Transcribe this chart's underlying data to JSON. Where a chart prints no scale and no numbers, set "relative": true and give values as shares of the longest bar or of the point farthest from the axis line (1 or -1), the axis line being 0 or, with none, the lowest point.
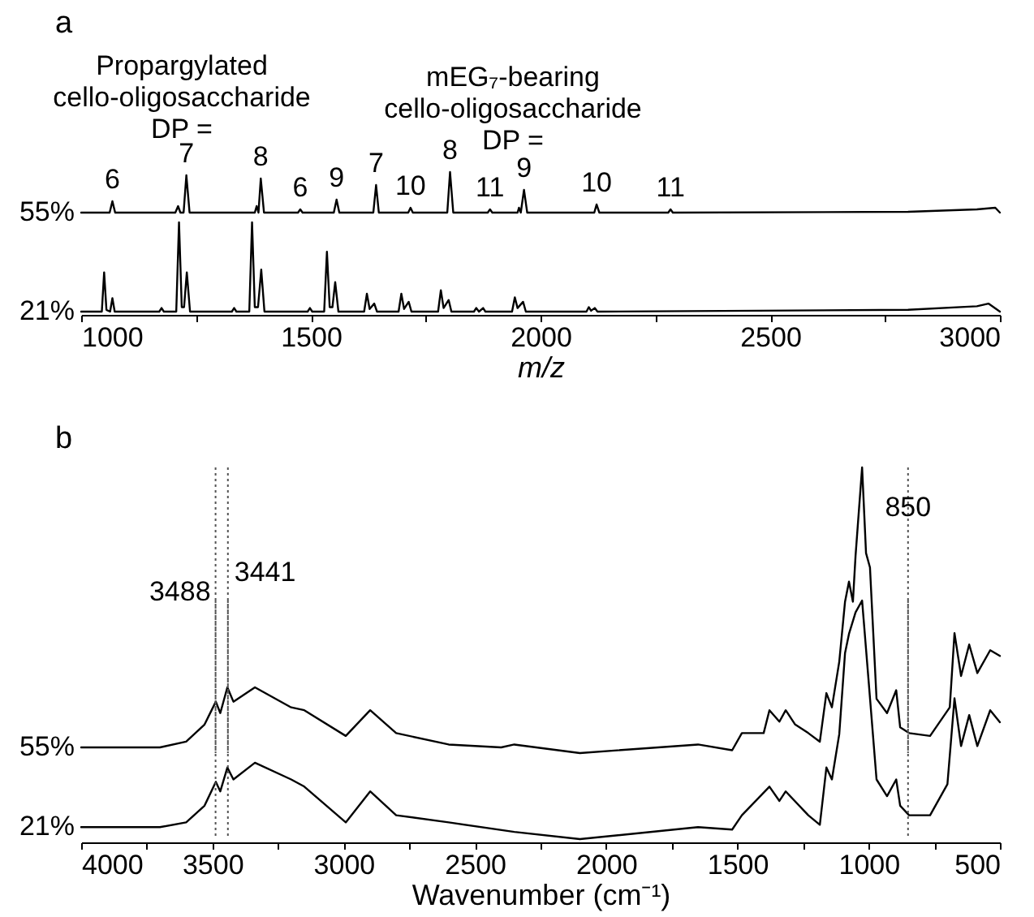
{
  "chart_data": [
    {
      "type": "line",
      "title": "a",
      "relative": true,
      "xlim": [
        1000,
        3000
      ],
      "annotations": [
        "Propargylated\ncello-oligosaccharide\nDP =",
        "mEG₇-bearing\ncello-oligosaccharide\nDP =",
        {
          "text": "6",
          "x": 1068,
          "y": 0.28
        },
        {
          "text": "7",
          "x": 1229,
          "y": 0.92
        },
        {
          "text": "8",
          "x": 1391,
          "y": 0.84
        },
        {
          "text": "6",
          "x": 1477,
          "y": 0.08
        },
        {
          "text": "9",
          "x": 1556,
          "y": 0.32
        },
        {
          "text": "7",
          "x": 1642,
          "y": 0.68
        },
        {
          "text": "10",
          "x": 1717,
          "y": 0.12
        },
        {
          "text": "8",
          "x": 1803,
          "y": 1
        },
        {
          "text": "11",
          "x": 1890,
          "y": 0.08
        },
        {
          "text": "9",
          "x": 1964,
          "y": 0.56
        },
        {
          "text": "10",
          "x": 2122,
          "y": 0.2
        },
        {
          "text": "11",
          "x": 2283,
          "y": 0.08
        }
      ],
      "x": [
        1000,
        1062,
        1068,
        1074,
        1205,
        1211,
        1216,
        1223,
        1229,
        1236,
        1378,
        1382,
        1386,
        1391,
        1398,
        1472,
        1477,
        1482,
        1550,
        1556,
        1562,
        1636,
        1642,
        1648,
        1712,
        1717,
        1722,
        1797,
        1803,
        1810,
        1885,
        1890,
        1895,
        1950,
        1953,
        1957,
        1964,
        1971,
        2117,
        2122,
        2128,
        2278,
        2283,
        2288,
        2800,
        2950,
        2990,
        3000
      ],
      "series": [
        {
          "name": "55%",
          "color": "#000000",
          "values": [
            0,
            0,
            0.28,
            0,
            0,
            0.16,
            0,
            0,
            0.92,
            0,
            0,
            0.16,
            0,
            0.84,
            0,
            0,
            0.08,
            0,
            0,
            0.32,
            0,
            0,
            0.68,
            0,
            0,
            0.12,
            0,
            0,
            1,
            0,
            0,
            0.08,
            0,
            0,
            0.12,
            0,
            0.56,
            0,
            0,
            0.2,
            0,
            0,
            0.08,
            0,
            0.02,
            0.08,
            0.12,
            0
          ]
        }
      ]
    },
    {
      "type": "line",
      "relative": true,
      "xlim": [
        1000,
        3000
      ],
      "xlabel": "m/z",
      "xticks": [
        1000,
        {
          "value": 1250,
          "label": null
        },
        1500,
        {
          "value": 1750,
          "label": null
        },
        2000,
        {
          "value": 2250,
          "label": null
        },
        2500,
        {
          "value": 2750,
          "label": null
        },
        3000
      ],
      "x": [
        1000,
        1045,
        1050,
        1055,
        1063,
        1068,
        1073,
        1170,
        1175,
        1180,
        1207,
        1213,
        1219,
        1224,
        1230,
        1237,
        1328,
        1333,
        1338,
        1366,
        1372,
        1378,
        1385,
        1392,
        1399,
        1493,
        1498,
        1503,
        1529,
        1535,
        1541,
        1547,
        1553,
        1560,
        1616,
        1622,
        1628,
        1638,
        1644,
        1691,
        1697,
        1703,
        1713,
        1719,
        1777,
        1783,
        1789,
        1800,
        1806,
        1855,
        1860,
        1866,
        1875,
        1880,
        1938,
        1944,
        1950,
        1962,
        1968,
        2100,
        2105,
        2110,
        2118,
        2124,
        2800,
        2950,
        2975,
        3000
      ],
      "series": [
        {
          "name": "21%",
          "color": "#000000",
          "values": [
            0,
            0,
            0.44,
            0.02,
            0,
            0.15,
            0,
            0,
            0.04,
            0,
            0,
            1,
            0.05,
            0.05,
            0.44,
            0,
            0,
            0.04,
            0,
            0,
            1,
            0.05,
            0.05,
            0.47,
            0,
            0,
            0.04,
            0,
            0,
            0.67,
            0.05,
            0.05,
            0.33,
            0,
            0,
            0.2,
            0.03,
            0.09,
            0,
            0,
            0.2,
            0.03,
            0.11,
            0,
            0,
            0.24,
            0.04,
            0.13,
            0,
            0,
            0.04,
            0,
            0.04,
            0,
            0,
            0.16,
            0.04,
            0.11,
            0,
            0,
            0.05,
            0.01,
            0.04,
            0,
            0.02,
            0.06,
            0.09,
            0
          ]
        }
      ]
    },
    {
      "type": "line",
      "title": "b",
      "relative": true,
      "xlim": [
        4000,
        500
      ],
      "ref_lines": [
        {
          "axis": "x",
          "value": 3488,
          "label": "3488",
          "color": "#555555",
          "line_style": "dotted"
        },
        {
          "axis": "x",
          "value": 3441,
          "label": "3441",
          "color": "#555555",
          "line_style": "dotted"
        },
        {
          "axis": "x",
          "value": 850,
          "label": "850",
          "color": "#555555",
          "line_style": "dotted"
        }
      ],
      "x": [
        4000,
        3700,
        3600,
        3530,
        3487,
        3470,
        3443,
        3420,
        3338,
        3200,
        3150,
        2992,
        2899,
        2800,
        2600,
        2400,
        2350,
        2100,
        1650,
        1520,
        1483,
        1400,
        1378,
        1340,
        1316,
        1280,
        1230,
        1186,
        1161,
        1140,
        1112,
        1090,
        1075,
        1060,
        1050,
        1025,
        1010,
        995,
        970,
        930,
        895,
        880,
        846,
        766,
        691,
        673,
        648,
        617,
        586,
        537,
        500
      ],
      "series": [
        {
          "name": "55%",
          "color": "#000000",
          "values": [
            0.02,
            0.02,
            0.04,
            0.1,
            0.18,
            0.14,
            0.23,
            0.18,
            0.23,
            0.16,
            0.15,
            0.06,
            0.15,
            0.07,
            0.03,
            0.02,
            0.03,
            0,
            0.03,
            0.01,
            0.07,
            0.07,
            0.15,
            0.11,
            0.15,
            0.1,
            0.07,
            0.04,
            0.21,
            0.16,
            0.32,
            0.53,
            0.6,
            0.53,
            0.69,
            1,
            0.7,
            0.65,
            0.19,
            0.14,
            0.22,
            0.09,
            0.07,
            0.06,
            0.16,
            0.42,
            0.27,
            0.38,
            0.28,
            0.36,
            0.34
          ]
        }
      ]
    },
    {
      "type": "line",
      "relative": true,
      "xlim": [
        4000,
        500
      ],
      "xlabel": "Wavenumber (cm⁻¹)",
      "xticks": [
        4000,
        {
          "value": 3750,
          "label": null
        },
        3500,
        {
          "value": 3250,
          "label": null
        },
        3000,
        {
          "value": 2750,
          "label": null
        },
        2500,
        {
          "value": 2250,
          "label": null
        },
        2000,
        {
          "value": 1750,
          "label": null
        },
        1500,
        {
          "value": 1250,
          "label": null
        },
        1000,
        {
          "value": 750,
          "label": null
        },
        500
      ],
      "ref_lines": [
        {
          "axis": "x",
          "value": 3488,
          "label": null,
          "color": "#555555",
          "line_style": "dotted"
        },
        {
          "axis": "x",
          "value": 3441,
          "label": null,
          "color": "#555555",
          "line_style": "dotted"
        },
        {
          "axis": "x",
          "value": 850,
          "label": null,
          "color": "#555555",
          "line_style": "dotted"
        }
      ],
      "x": [
        4000,
        3700,
        3600,
        3530,
        3487,
        3470,
        3443,
        3420,
        3338,
        3200,
        3150,
        2992,
        2899,
        2800,
        2600,
        2350,
        2100,
        1650,
        1520,
        1483,
        1378,
        1340,
        1316,
        1230,
        1186,
        1161,
        1140,
        1112,
        1090,
        1075,
        1050,
        1025,
        1000,
        970,
        930,
        895,
        880,
        846,
        766,
        700,
        673,
        648,
        617,
        586,
        537,
        500
      ],
      "series": [
        {
          "name": "21%",
          "color": "#000000",
          "values": [
            0.05,
            0.05,
            0.07,
            0.14,
            0.24,
            0.2,
            0.3,
            0.25,
            0.32,
            0.25,
            0.22,
            0.07,
            0.2,
            0.1,
            0.07,
            0.03,
            0,
            0.05,
            0.04,
            0.1,
            0.22,
            0.16,
            0.2,
            0.1,
            0.06,
            0.3,
            0.25,
            0.44,
            0.78,
            0.86,
            0.95,
            1,
            0.66,
            0.25,
            0.18,
            0.25,
            0.14,
            0.1,
            0.1,
            0.23,
            0.59,
            0.39,
            0.52,
            0.39,
            0.54,
            0.49
          ]
        }
      ]
    }
  ]
}
